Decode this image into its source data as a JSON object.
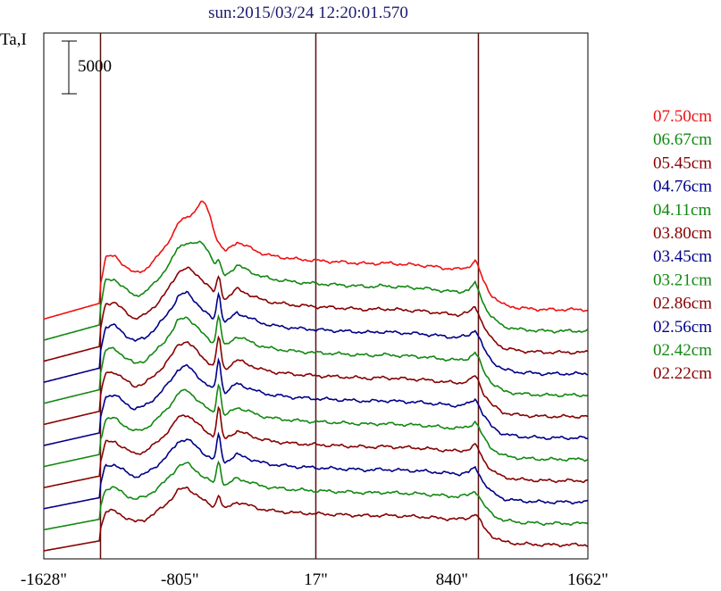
{
  "chart_data": {
    "type": "line",
    "title": "sun:2015/03/24 12:20:01.570",
    "ylabel": "Ta,I",
    "scale_bar_label": "5000",
    "scale_bar_value": 5000,
    "x_tick_values": [
      -1628,
      -805,
      17,
      840,
      1662
    ],
    "x_tick_labels": [
      "-1628\"",
      "-805\"",
      "17\"",
      "840\"",
      "1662\""
    ],
    "xlim": [
      -1628,
      1662
    ],
    "vertical_lines": [
      -1285,
      17,
      1000
    ],
    "legend_placement": "right",
    "trace_spacing": 2000,
    "profile": {
      "x": [
        -1628,
        -1290,
        -1285,
        -1255,
        -1200,
        -1130,
        -1080,
        -1020,
        -960,
        -900,
        -840,
        -820,
        -790,
        -760,
        -720,
        -660,
        -600,
        -530,
        -460,
        -400,
        -320,
        -250,
        -180,
        -110,
        -40,
        17,
        100,
        180,
        260,
        340,
        420,
        500,
        580,
        660,
        740,
        820,
        880,
        940,
        980,
        1000,
        1030,
        1080,
        1150,
        1250,
        1400,
        1662
      ],
      "base": [
        0,
        1000,
        2200,
        3900,
        4000,
        3300,
        2900,
        3100,
        3700,
        4500,
        5500,
        6000,
        6200,
        6300,
        5800,
        5000,
        4400,
        4200,
        4900,
        4600,
        4200,
        4000,
        3900,
        3800,
        3750,
        3700,
        3650,
        3600,
        3550,
        3500,
        3550,
        3500,
        3450,
        3400,
        3300,
        3200,
        3150,
        3300,
        3700,
        3300,
        2400,
        1500,
        900,
        700,
        600,
        600
      ]
    },
    "series": [
      {
        "name": "07.50cm",
        "color": "#ee1111",
        "scale": 1.5,
        "peak": 0,
        "hump": 3500
      },
      {
        "name": "06.67cm",
        "color": "#118811",
        "scale": 1.45,
        "peak": 800,
        "hump": 1800
      },
      {
        "name": "05.45cm",
        "color": "#880000",
        "scale": 1.4,
        "peak": 1800,
        "hump": 600
      },
      {
        "name": "04.76cm",
        "color": "#000088",
        "scale": 1.35,
        "peak": 2600,
        "hump": 0
      },
      {
        "name": "04.11cm",
        "color": "#118811",
        "scale": 1.3,
        "peak": 2700,
        "hump": 0
      },
      {
        "name": "03.80cm",
        "color": "#880000",
        "scale": 1.25,
        "peak": 2900,
        "hump": 0
      },
      {
        "name": "03.45cm",
        "color": "#000088",
        "scale": 1.2,
        "peak": 3000,
        "hump": 0
      },
      {
        "name": "03.21cm",
        "color": "#118811",
        "scale": 1.15,
        "peak": 2900,
        "hump": 0
      },
      {
        "name": "02.86cm",
        "color": "#880000",
        "scale": 1.1,
        "peak": 2800,
        "hump": 0
      },
      {
        "name": "02.56cm",
        "color": "#000088",
        "scale": 1.05,
        "peak": 2400,
        "hump": 0
      },
      {
        "name": "02.42cm",
        "color": "#118811",
        "scale": 1.0,
        "peak": 2200,
        "hump": 0
      },
      {
        "name": "02.22cm",
        "color": "#880000",
        "scale": 0.95,
        "peak": 1200,
        "hump": 0
      }
    ]
  }
}
